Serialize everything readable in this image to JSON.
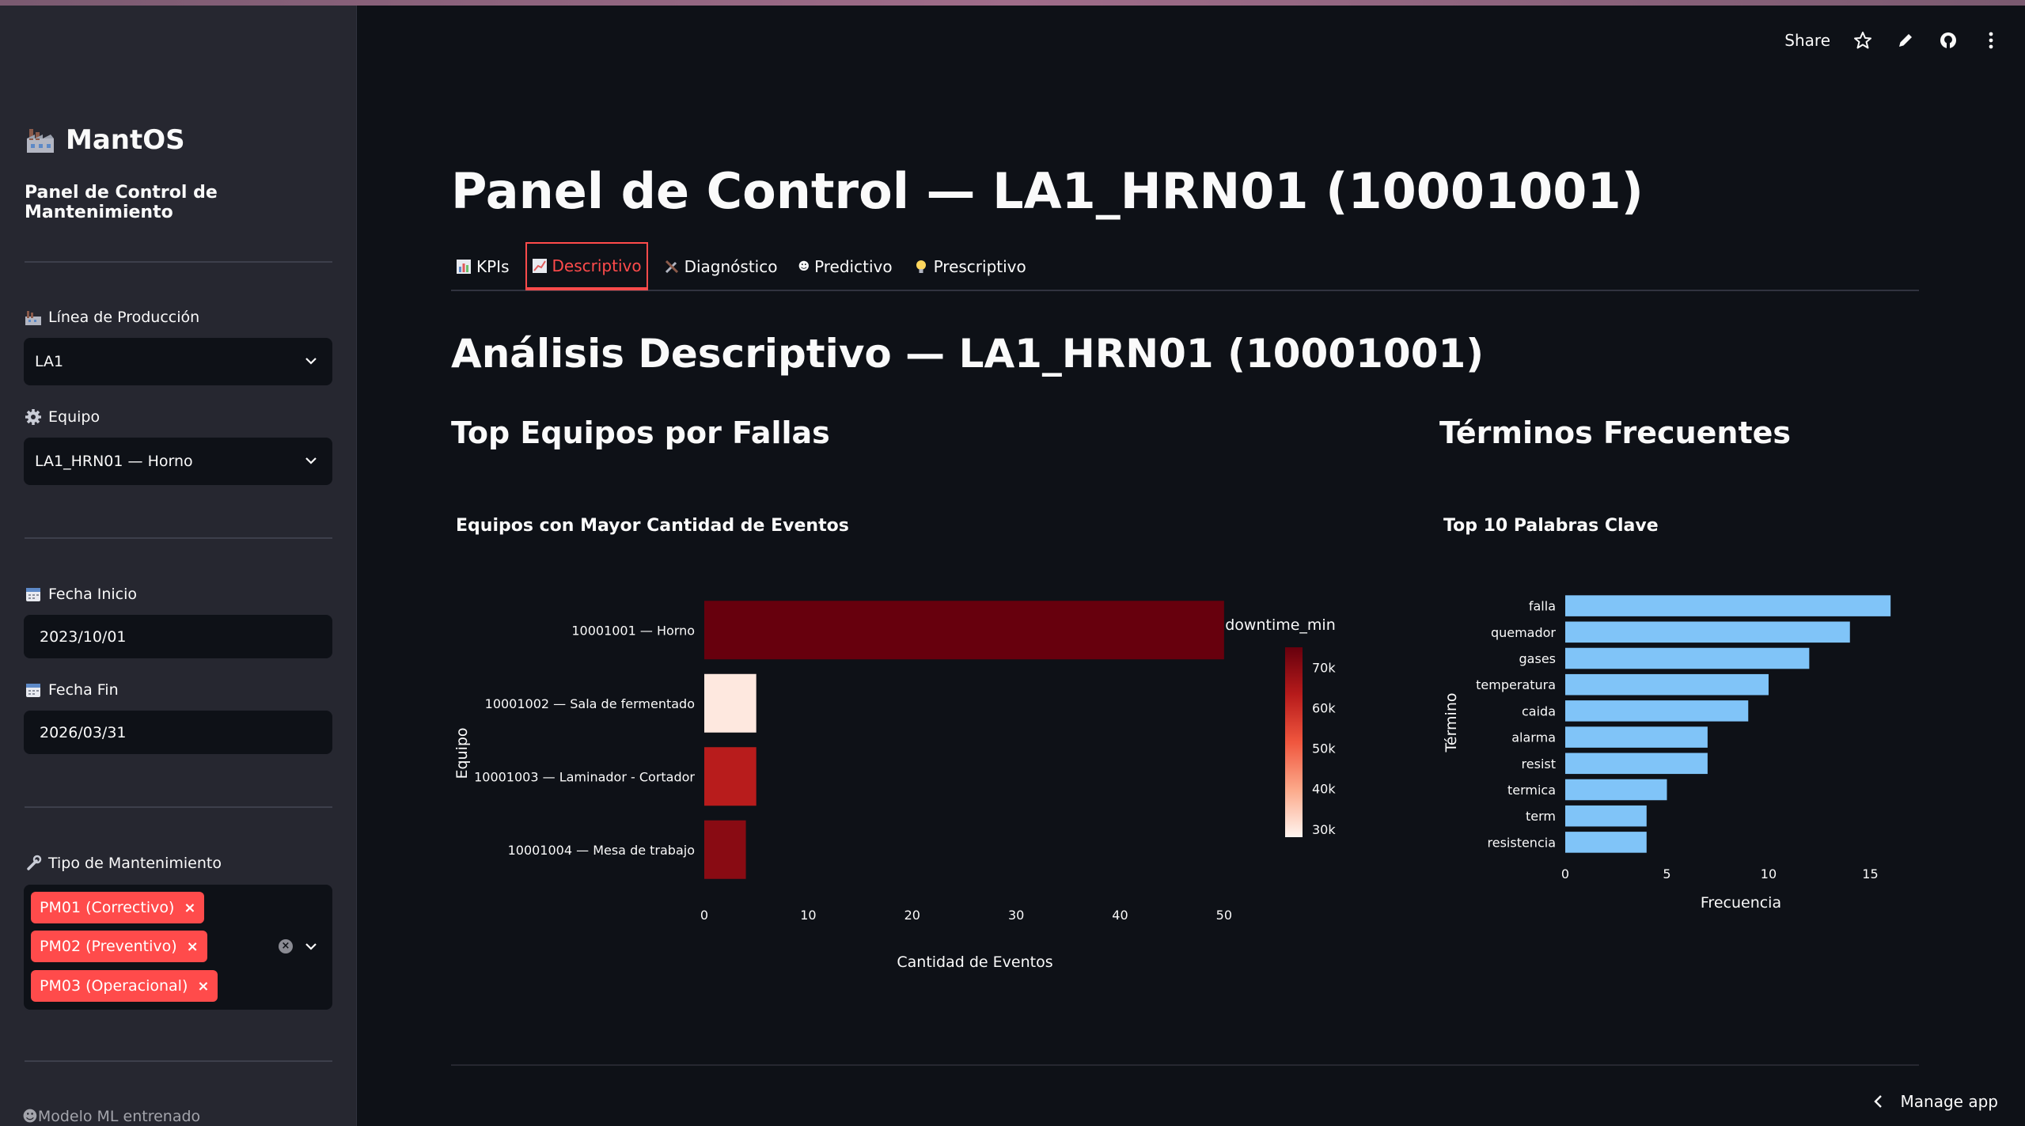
{
  "sidebar": {
    "brand": "MantOS",
    "subtitle": "Panel de Control de Mantenimiento",
    "linea_label": "Línea de Producción",
    "linea_value": "LA1",
    "equipo_label": "Equipo",
    "equipo_value": "LA1_HRN01 — Horno",
    "fecha_inicio_label": "Fecha Inicio",
    "fecha_inicio_value": "2023/10/01",
    "fecha_fin_label": "Fecha Fin",
    "fecha_fin_value": "2026/03/31",
    "tipo_label": "Tipo de Mantenimiento",
    "tipo_chips": [
      "PM01 (Correctivo)",
      "PM02 (Preventivo)",
      "PM03 (Operacional)"
    ],
    "footer": "Modelo ML entrenado"
  },
  "toolbar": {
    "share_label": "Share"
  },
  "main": {
    "title": "Panel de Control — LA1_HRN01 (10001001)",
    "tabs": [
      "KPIs",
      "Descriptivo",
      "Diagnóstico",
      "Predictivo",
      "Prescriptivo"
    ],
    "active_tab": "Descriptivo",
    "section_title": "Análisis Descriptivo — LA1_HRN01 (10001001)",
    "left_subtitle": "Top Equipos por Fallas",
    "right_subtitle": "Términos Frecuentes"
  },
  "manage_app_label": "Manage app",
  "colors": {
    "accent": "#ff4b4b",
    "bar_blue": "#80c4f8",
    "sidebar_bg": "#262730",
    "main_bg": "#0e1117"
  },
  "chart_data": [
    {
      "type": "bar",
      "orientation": "horizontal",
      "title": "Equipos con Mayor Cantidad de Eventos",
      "xlabel": "Cantidad de Eventos",
      "ylabel": "Equipo",
      "categories": [
        "10001001 — Horno",
        "10001002 — Sala de fermentado",
        "10001003 — Laminador - Cortador",
        "10001004 — Mesa de trabajo"
      ],
      "values": [
        50,
        5,
        5,
        4
      ],
      "color_values": [
        75000,
        30000,
        63000,
        70000
      ],
      "colorbar_title": "downtime_min",
      "colorbar_ticks": [
        "70k",
        "60k",
        "50k",
        "40k",
        "30k"
      ],
      "colorbar_range": [
        28000,
        75000
      ],
      "xticks": [
        0,
        10,
        20,
        30,
        40,
        50
      ],
      "xlim": [
        0,
        51
      ]
    },
    {
      "type": "bar",
      "orientation": "horizontal",
      "title": "Top 10 Palabras Clave",
      "xlabel": "Frecuencia",
      "ylabel": "Término",
      "categories": [
        "falla",
        "quemador",
        "gases",
        "temperatura",
        "caida",
        "alarma",
        "resist",
        "termica",
        "term",
        "resistencia"
      ],
      "values": [
        16,
        14,
        12,
        10,
        9,
        7,
        7,
        5,
        4,
        4
      ],
      "xticks": [
        0,
        5,
        10,
        15
      ],
      "xlim": [
        0,
        16.5
      ]
    }
  ]
}
